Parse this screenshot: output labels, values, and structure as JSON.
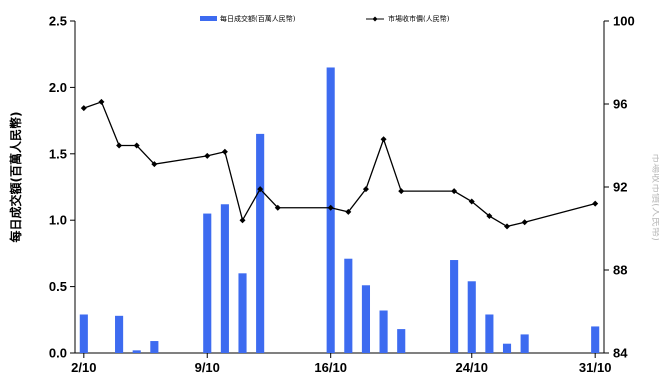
{
  "chart_data": {
    "type": "bar+line",
    "categories": [
      "2/10",
      "3/10",
      "4/10",
      "5/10",
      "6/10",
      "7/10",
      "8/10",
      "9/10",
      "10/10",
      "11/10",
      "12/10",
      "13/10",
      "14/10",
      "15/10",
      "16/10",
      "17/10",
      "18/10",
      "19/10",
      "20/10",
      "21/10",
      "22/10",
      "23/10",
      "24/10",
      "25/10",
      "26/10",
      "27/10",
      "28/10",
      "29/10",
      "30/10",
      "31/10"
    ],
    "x_tick_labels": [
      "2/10",
      "9/10",
      "16/10",
      "24/10",
      "31/10"
    ],
    "series": [
      {
        "name": "每日成交額(百萬人民幣)",
        "type": "bar",
        "axis": "left",
        "color": "#3d6bf0",
        "points": [
          {
            "x": "2/10",
            "y": 0.29
          },
          {
            "x": "4/10",
            "y": 0.28
          },
          {
            "x": "5/10",
            "y": 0.02
          },
          {
            "x": "6/10",
            "y": 0.09
          },
          {
            "x": "9/10",
            "y": 1.05
          },
          {
            "x": "10/10",
            "y": 1.12
          },
          {
            "x": "11/10",
            "y": 0.6
          },
          {
            "x": "12/10",
            "y": 1.65
          },
          {
            "x": "16/10",
            "y": 2.15
          },
          {
            "x": "17/10",
            "y": 0.71
          },
          {
            "x": "18/10",
            "y": 0.51
          },
          {
            "x": "19/10",
            "y": 0.32
          },
          {
            "x": "20/10",
            "y": 0.18
          },
          {
            "x": "23/10",
            "y": 0.7
          },
          {
            "x": "24/10",
            "y": 0.54
          },
          {
            "x": "25/10",
            "y": 0.29
          },
          {
            "x": "26/10",
            "y": 0.07
          },
          {
            "x": "27/10",
            "y": 0.14
          },
          {
            "x": "31/10",
            "y": 0.2
          }
        ]
      },
      {
        "name": "市場收市價(人民幣)",
        "type": "line",
        "axis": "right",
        "color": "#000000",
        "points": [
          {
            "x": "2/10",
            "y": 95.8
          },
          {
            "x": "3/10",
            "y": 96.1
          },
          {
            "x": "4/10",
            "y": 94.0
          },
          {
            "x": "5/10",
            "y": 94.0
          },
          {
            "x": "6/10",
            "y": 93.1
          },
          {
            "x": "9/10",
            "y": 93.5
          },
          {
            "x": "10/10",
            "y": 93.7
          },
          {
            "x": "11/10",
            "y": 90.4
          },
          {
            "x": "12/10",
            "y": 91.9
          },
          {
            "x": "13/10",
            "y": 91.0
          },
          {
            "x": "16/10",
            "y": 91.0
          },
          {
            "x": "17/10",
            "y": 90.8
          },
          {
            "x": "18/10",
            "y": 91.9
          },
          {
            "x": "19/10",
            "y": 94.3
          },
          {
            "x": "20/10",
            "y": 91.8
          },
          {
            "x": "23/10",
            "y": 91.8
          },
          {
            "x": "24/10",
            "y": 91.3
          },
          {
            "x": "25/10",
            "y": 90.6
          },
          {
            "x": "26/10",
            "y": 90.1
          },
          {
            "x": "27/10",
            "y": 90.3
          },
          {
            "x": "31/10",
            "y": 91.2
          }
        ]
      }
    ],
    "left_axis": {
      "label": "每日成交額(百萬人民幣)",
      "ylim": [
        0,
        2.5
      ],
      "ticks": [
        "0.0",
        "0.5",
        "1.0",
        "1.5",
        "2.0",
        "2.5"
      ]
    },
    "right_axis": {
      "label": "市場收市價(人民幣)",
      "ylim": [
        84,
        100
      ],
      "ticks": [
        "84",
        "88",
        "92",
        "96",
        "100"
      ]
    },
    "legend": {
      "position": "top-center"
    },
    "grid": false
  }
}
